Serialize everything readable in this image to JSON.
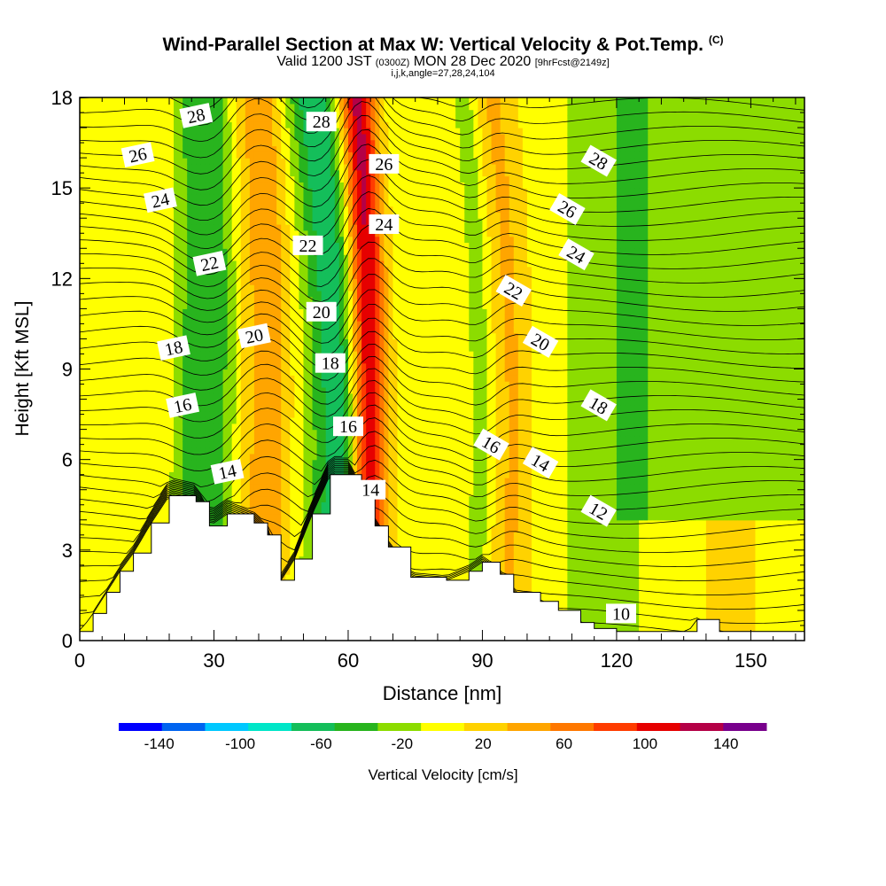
{
  "chart_data": {
    "type": "heatmap",
    "title": "Wind-Parallel Section at Max W: Vertical Velocity & Pot.Temp.",
    "title_mark": "(C)",
    "subtitle_prefix": "Valid 1200 JST",
    "subtitle_utc": "(0300Z)",
    "subtitle_date": "MON 28 Dec 2020",
    "subtitle_fcst": "[9hrFcst@2149z]",
    "subtitle2": "i,j,k,angle=27,28,24,104",
    "xlabel": "Distance [nm]",
    "ylabel": "Height [Kft MSL]",
    "xlim": [
      0,
      162
    ],
    "ylim": [
      0,
      18
    ],
    "x_ticks": [
      0,
      30,
      60,
      90,
      120,
      150
    ],
    "y_ticks": [
      0,
      3,
      6,
      9,
      12,
      15,
      18
    ],
    "colorbar": {
      "label": "Vertical Velocity [cm/s]",
      "tick_labels": [
        "-140",
        "-100",
        "-60",
        "-20",
        "20",
        "60",
        "100",
        "140"
      ],
      "tick_values": [
        -140,
        -100,
        -60,
        -20,
        20,
        60,
        100,
        140
      ],
      "range": [
        -160,
        160
      ],
      "colors": [
        "#0000ff",
        "#0064f0",
        "#00c8ff",
        "#00e6c8",
        "#14be5a",
        "#28b41e",
        "#8cdc00",
        "#ffff00",
        "#ffd200",
        "#ffa500",
        "#ff7800",
        "#ff3c00",
        "#e60000",
        "#b40046",
        "#78008c"
      ]
    },
    "terrain_kft": [
      [
        0,
        0.3
      ],
      [
        3,
        0.9
      ],
      [
        6,
        1.6
      ],
      [
        9,
        2.3
      ],
      [
        12,
        2.9
      ],
      [
        16,
        3.9
      ],
      [
        20,
        4.8
      ],
      [
        26,
        4.6
      ],
      [
        29,
        3.8
      ],
      [
        33,
        4.2
      ],
      [
        39,
        3.9
      ],
      [
        42,
        3.5
      ],
      [
        45,
        2.0
      ],
      [
        48,
        2.7
      ],
      [
        52,
        4.2
      ],
      [
        56,
        5.5
      ],
      [
        60,
        5.5
      ],
      [
        63,
        4.7
      ],
      [
        66,
        3.8
      ],
      [
        69,
        3.1
      ],
      [
        74,
        2.1
      ],
      [
        82,
        2.0
      ],
      [
        87,
        2.3
      ],
      [
        90,
        2.6
      ],
      [
        94,
        2.2
      ],
      [
        97,
        1.6
      ],
      [
        103,
        1.3
      ],
      [
        107,
        1.0
      ],
      [
        112,
        0.6
      ],
      [
        115,
        0.4
      ],
      [
        120,
        0.3
      ],
      [
        136,
        0.3
      ],
      [
        138,
        0.7
      ],
      [
        143,
        0.3
      ],
      [
        160,
        0.3
      ],
      [
        162,
        0.3
      ]
    ],
    "w_bands": [
      {
        "label": "downdraft",
        "x": [
          24,
          27,
          26
        ],
        "width": 4,
        "w": -50
      },
      {
        "label": "downdraft",
        "x": [
          30,
          34,
          31
        ],
        "width": 3,
        "w": -30
      },
      {
        "label": "updraft",
        "x": [
          40,
          44,
          40
        ],
        "width": 5,
        "w": 50
      },
      {
        "label": "downdraft",
        "x": [
          56,
          61,
          52
        ],
        "width": 6,
        "w": -70
      },
      {
        "label": "updraft",
        "x": [
          64,
          66,
          62
        ],
        "width": 4,
        "w": 130
      },
      {
        "label": "downdraft",
        "x": [
          88,
          92,
          86
        ],
        "width": 3,
        "w": -30
      },
      {
        "label": "updraft",
        "x": [
          95,
          100,
          92
        ],
        "width": 4,
        "w": 25
      }
    ],
    "theta_contours": [
      {
        "value": "10",
        "x": 121,
        "y": 0.9
      },
      {
        "value": "12",
        "x": 116,
        "y": 4.3
      },
      {
        "value": "14",
        "x": 33,
        "y": 5.6
      },
      {
        "value": "14",
        "x": 65,
        "y": 5.0
      },
      {
        "value": "14",
        "x": 103,
        "y": 5.9
      },
      {
        "value": "16",
        "x": 23,
        "y": 7.8
      },
      {
        "value": "16",
        "x": 60,
        "y": 7.1
      },
      {
        "value": "16",
        "x": 92,
        "y": 6.5
      },
      {
        "value": "18",
        "x": 21,
        "y": 9.7
      },
      {
        "value": "18",
        "x": 56,
        "y": 9.2
      },
      {
        "value": "18",
        "x": 116,
        "y": 7.8
      },
      {
        "value": "20",
        "x": 39,
        "y": 10.1
      },
      {
        "value": "20",
        "x": 54,
        "y": 10.9
      },
      {
        "value": "20",
        "x": 103,
        "y": 9.9
      },
      {
        "value": "22",
        "x": 29,
        "y": 12.5
      },
      {
        "value": "22",
        "x": 51,
        "y": 13.1
      },
      {
        "value": "22",
        "x": 97,
        "y": 11.6
      },
      {
        "value": "24",
        "x": 18,
        "y": 14.6
      },
      {
        "value": "24",
        "x": 68,
        "y": 13.8
      },
      {
        "value": "24",
        "x": 111,
        "y": 12.8
      },
      {
        "value": "26",
        "x": 13,
        "y": 16.1
      },
      {
        "value": "26",
        "x": 68,
        "y": 15.8
      },
      {
        "value": "26",
        "x": 109,
        "y": 14.3
      },
      {
        "value": "28",
        "x": 26,
        "y": 17.4
      },
      {
        "value": "28",
        "x": 54,
        "y": 17.2
      },
      {
        "value": "28",
        "x": 116,
        "y": 15.9
      }
    ]
  }
}
